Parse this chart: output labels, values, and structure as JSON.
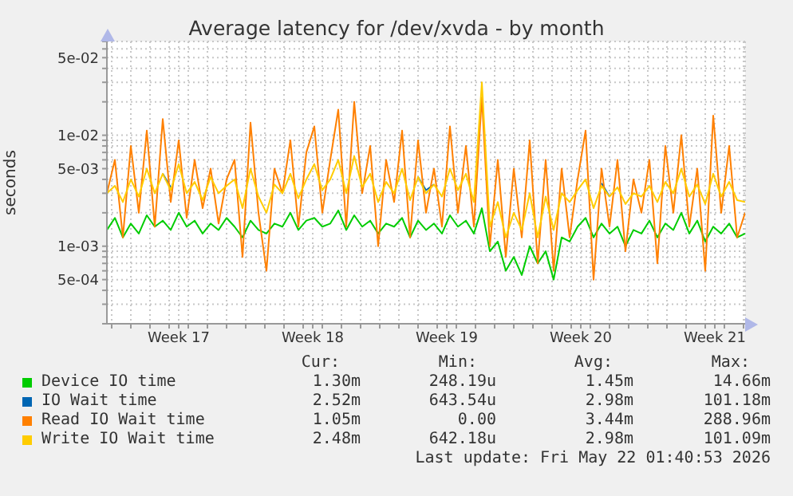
{
  "chart_data": {
    "type": "line",
    "title": "Average latency for /dev/xvda - by month",
    "ylabel": "seconds",
    "log": true,
    "grid": true,
    "legend": "bottom",
    "marker": "none",
    "line_style": "solid",
    "xlim": [
      "2026-04-18T18:00",
      "2026-05-22T02:00"
    ],
    "ylim": [
      0.0002,
      0.07
    ],
    "xticks": [
      {
        "value": "2026-04-19",
        "label": null
      },
      {
        "value": "2026-04-20",
        "label": null
      },
      {
        "value": "2026-04-21",
        "label": null
      },
      {
        "value": "2026-04-22",
        "label": null
      },
      {
        "value": "2026-04-22T12:00",
        "label": "Week 17"
      },
      {
        "value": "2026-04-23",
        "label": null
      },
      {
        "value": "2026-04-24",
        "label": null
      },
      {
        "value": "2026-04-25",
        "label": null
      },
      {
        "value": "2026-04-26",
        "label": null
      },
      {
        "value": "2026-04-27",
        "label": null
      },
      {
        "value": "2026-04-28",
        "label": null
      },
      {
        "value": "2026-04-29",
        "label": null
      },
      {
        "value": "2026-04-29T12:00",
        "label": "Week 18"
      },
      {
        "value": "2026-04-30",
        "label": null
      },
      {
        "value": "2026-05-01",
        "label": null
      },
      {
        "value": "2026-05-02",
        "label": null
      },
      {
        "value": "2026-05-03",
        "label": null
      },
      {
        "value": "2026-05-04",
        "label": null
      },
      {
        "value": "2026-05-05",
        "label": null
      },
      {
        "value": "2026-05-06",
        "label": null
      },
      {
        "value": "2026-05-06T12:00",
        "label": "Week 19"
      },
      {
        "value": "2026-05-07",
        "label": null
      },
      {
        "value": "2026-05-08",
        "label": null
      },
      {
        "value": "2026-05-09",
        "label": null
      },
      {
        "value": "2026-05-10",
        "label": null
      },
      {
        "value": "2026-05-11",
        "label": null
      },
      {
        "value": "2026-05-12",
        "label": null
      },
      {
        "value": "2026-05-13",
        "label": null
      },
      {
        "value": "2026-05-13T12:00",
        "label": "Week 20"
      },
      {
        "value": "2026-05-14",
        "label": null
      },
      {
        "value": "2026-05-15",
        "label": null
      },
      {
        "value": "2026-05-16",
        "label": null
      },
      {
        "value": "2026-05-17",
        "label": null
      },
      {
        "value": "2026-05-18",
        "label": null
      },
      {
        "value": "2026-05-19",
        "label": null
      },
      {
        "value": "2026-05-20",
        "label": null
      },
      {
        "value": "2026-05-20T12:00",
        "label": "Week 21"
      },
      {
        "value": "2026-05-21",
        "label": null
      },
      {
        "value": "2026-05-22",
        "label": null
      }
    ],
    "yticks": [
      {
        "value": 0.0002,
        "label": null
      },
      {
        "value": 0.0003,
        "label": null
      },
      {
        "value": 0.0004,
        "label": null
      },
      {
        "value": 0.0005,
        "label": "5e-04"
      },
      {
        "value": 0.0006,
        "label": null
      },
      {
        "value": 0.0007,
        "label": null
      },
      {
        "value": 0.0008,
        "label": null
      },
      {
        "value": 0.0009,
        "label": null
      },
      {
        "value": 0.001,
        "label": "1e-03"
      },
      {
        "value": 0.002,
        "label": null
      },
      {
        "value": 0.003,
        "label": null
      },
      {
        "value": 0.004,
        "label": null
      },
      {
        "value": 0.005,
        "label": "5e-03"
      },
      {
        "value": 0.006,
        "label": null
      },
      {
        "value": 0.007,
        "label": null
      },
      {
        "value": 0.008,
        "label": null
      },
      {
        "value": 0.009,
        "label": null
      },
      {
        "value": 0.01,
        "label": "1e-02"
      },
      {
        "value": 0.02,
        "label": null
      },
      {
        "value": 0.03,
        "label": null
      },
      {
        "value": 0.04,
        "label": null
      },
      {
        "value": 0.05,
        "label": "5e-02"
      },
      {
        "value": 0.06,
        "label": null
      },
      {
        "value": 0.07,
        "label": null
      }
    ],
    "x": [
      "2026-04-18T18:00",
      "2026-04-19T04:00",
      "2026-04-19T14:00",
      "2026-04-20T00:00",
      "2026-04-20T10:00",
      "2026-04-20T20:00",
      "2026-04-21T06:00",
      "2026-04-21T16:00",
      "2026-04-22T02:00",
      "2026-04-22T12:00",
      "2026-04-22T22:00",
      "2026-04-23T08:00",
      "2026-04-23T18:00",
      "2026-04-24T04:00",
      "2026-04-24T14:00",
      "2026-04-25T00:00",
      "2026-04-25T10:00",
      "2026-04-25T20:00",
      "2026-04-26T06:00",
      "2026-04-26T16:00",
      "2026-04-27T02:00",
      "2026-04-27T12:00",
      "2026-04-27T22:00",
      "2026-04-28T08:00",
      "2026-04-28T18:00",
      "2026-04-29T04:00",
      "2026-04-29T14:00",
      "2026-04-30T00:00",
      "2026-04-30T10:00",
      "2026-04-30T20:00",
      "2026-05-01T06:00",
      "2026-05-01T16:00",
      "2026-05-02T02:00",
      "2026-05-02T12:00",
      "2026-05-02T22:00",
      "2026-05-03T08:00",
      "2026-05-03T18:00",
      "2026-05-04T04:00",
      "2026-05-04T14:00",
      "2026-05-05T00:00",
      "2026-05-05T10:00",
      "2026-05-05T20:00",
      "2026-05-06T06:00",
      "2026-05-06T16:00",
      "2026-05-07T02:00",
      "2026-05-07T12:00",
      "2026-05-07T22:00",
      "2026-05-08T08:00",
      "2026-05-08T18:00",
      "2026-05-09T04:00",
      "2026-05-09T14:00",
      "2026-05-10T00:00",
      "2026-05-10T10:00",
      "2026-05-10T20:00",
      "2026-05-11T06:00",
      "2026-05-11T16:00",
      "2026-05-12T02:00",
      "2026-05-12T12:00",
      "2026-05-12T22:00",
      "2026-05-13T08:00",
      "2026-05-13T18:00",
      "2026-05-14T04:00",
      "2026-05-14T14:00",
      "2026-05-15T00:00",
      "2026-05-15T10:00",
      "2026-05-15T20:00",
      "2026-05-16T06:00",
      "2026-05-16T16:00",
      "2026-05-17T02:00",
      "2026-05-17T12:00",
      "2026-05-17T22:00",
      "2026-05-18T08:00",
      "2026-05-18T18:00",
      "2026-05-19T04:00",
      "2026-05-19T14:00",
      "2026-05-20T00:00",
      "2026-05-20T10:00",
      "2026-05-20T20:00",
      "2026-05-21T06:00",
      "2026-05-21T16:00",
      "2026-05-22T02:00"
    ],
    "series": [
      {
        "name": "Device IO time",
        "color": "#00cc00",
        "values": [
          0.0014,
          0.0018,
          0.0012,
          0.0016,
          0.0013,
          0.0019,
          0.0015,
          0.0017,
          0.0014,
          0.002,
          0.0015,
          0.0017,
          0.0013,
          0.0016,
          0.0014,
          0.0018,
          0.0015,
          0.0012,
          0.0017,
          0.0014,
          0.0013,
          0.0016,
          0.0015,
          0.002,
          0.0014,
          0.0017,
          0.0018,
          0.0015,
          0.0016,
          0.0021,
          0.0014,
          0.0019,
          0.0015,
          0.0017,
          0.0013,
          0.0016,
          0.0015,
          0.0018,
          0.0012,
          0.0017,
          0.0014,
          0.0016,
          0.0013,
          0.0019,
          0.0015,
          0.0017,
          0.0013,
          0.0022,
          0.0009,
          0.0011,
          0.0006,
          0.0008,
          0.00055,
          0.001,
          0.0007,
          0.0009,
          0.0005,
          0.0012,
          0.0011,
          0.0015,
          0.0018,
          0.0012,
          0.0016,
          0.0013,
          0.0015,
          0.001,
          0.0014,
          0.0013,
          0.0017,
          0.0012,
          0.0016,
          0.0014,
          0.002,
          0.0013,
          0.0017,
          0.0011,
          0.0015,
          0.0013,
          0.0016,
          0.0012,
          0.0013
        ]
      },
      {
        "name": "IO Wait time",
        "color": "#0066b3",
        "values": [
          null,
          null,
          null,
          null,
          null,
          null,
          null,
          0.0045,
          0.0034,
          null,
          null,
          null,
          null,
          null,
          null,
          null,
          null,
          null,
          null,
          null,
          null,
          null,
          null,
          null,
          null,
          null,
          null,
          null,
          null,
          null,
          null,
          null,
          null,
          null,
          null,
          null,
          null,
          null,
          null,
          0.0042,
          0.0032,
          0.0036,
          null,
          null,
          null,
          null,
          null,
          null,
          null,
          null,
          null,
          null,
          null,
          null,
          null,
          null,
          null,
          null,
          null,
          null,
          null,
          null,
          0.0037,
          0.0028,
          null,
          null,
          null,
          null,
          null,
          null,
          null,
          null,
          null,
          null,
          null,
          null,
          null,
          null,
          null,
          null,
          null
        ]
      },
      {
        "name": "Read IO Wait time",
        "color": "#ff8000",
        "values": [
          0.003,
          0.006,
          0.0012,
          0.008,
          0.002,
          0.011,
          0.0015,
          0.014,
          0.0025,
          0.009,
          0.0018,
          0.006,
          0.0022,
          0.005,
          0.0016,
          0.004,
          0.006,
          0.0008,
          0.013,
          0.002,
          0.0006,
          0.005,
          0.003,
          0.009,
          0.0015,
          0.007,
          0.012,
          0.002,
          0.006,
          0.017,
          0.0015,
          0.02,
          0.003,
          0.008,
          0.001,
          0.006,
          0.0025,
          0.011,
          0.0012,
          0.009,
          0.002,
          0.005,
          0.0015,
          0.012,
          0.002,
          0.008,
          0.0015,
          0.022,
          0.001,
          0.006,
          0.0008,
          0.005,
          0.0012,
          0.009,
          0.0007,
          0.006,
          0.0006,
          0.005,
          0.0012,
          0.004,
          0.011,
          0.0005,
          0.005,
          0.0015,
          0.006,
          0.0009,
          0.004,
          0.002,
          0.006,
          0.0007,
          0.008,
          0.002,
          0.01,
          0.0015,
          0.005,
          0.0006,
          0.015,
          0.002,
          0.008,
          0.0012,
          0.002
        ]
      },
      {
        "name": "Write IO Wait time",
        "color": "#ffcc00",
        "values": [
          0.003,
          0.0035,
          0.0025,
          0.004,
          0.0028,
          0.005,
          0.003,
          0.0045,
          0.0032,
          0.0055,
          0.003,
          0.0038,
          0.0026,
          0.0042,
          0.003,
          0.0035,
          0.004,
          0.0022,
          0.005,
          0.0028,
          0.002,
          0.0036,
          0.003,
          0.0045,
          0.0027,
          0.004,
          0.0055,
          0.0032,
          0.004,
          0.006,
          0.003,
          0.0065,
          0.0034,
          0.0045,
          0.0025,
          0.0038,
          0.003,
          0.005,
          0.0026,
          0.0042,
          0.003,
          0.0036,
          0.0028,
          0.005,
          0.0032,
          0.0045,
          0.0025,
          0.03,
          0.0015,
          0.0025,
          0.0012,
          0.002,
          0.0014,
          0.003,
          0.0012,
          0.0028,
          0.0014,
          0.003,
          0.0025,
          0.0032,
          0.004,
          0.0022,
          0.0035,
          0.0028,
          0.0034,
          0.0024,
          0.003,
          0.0028,
          0.0035,
          0.0025,
          0.0038,
          0.003,
          0.005,
          0.0028,
          0.0036,
          0.0024,
          0.0045,
          0.0028,
          0.0038,
          0.0026,
          0.0025
        ]
      }
    ],
    "annotations": [
      "Cur:",
      "Min:",
      "Avg:",
      "Max:",
      "1.30m",
      "248.19u",
      "1.45m",
      "14.66m",
      "2.52m",
      "643.54u",
      "2.98m",
      "101.18m",
      "1.05m",
      "0.00",
      "3.44m",
      "288.96m",
      "2.48m",
      "642.18u",
      "2.98m",
      "101.09m",
      "Last update: Fri May 22 01:40:53 2026"
    ]
  }
}
